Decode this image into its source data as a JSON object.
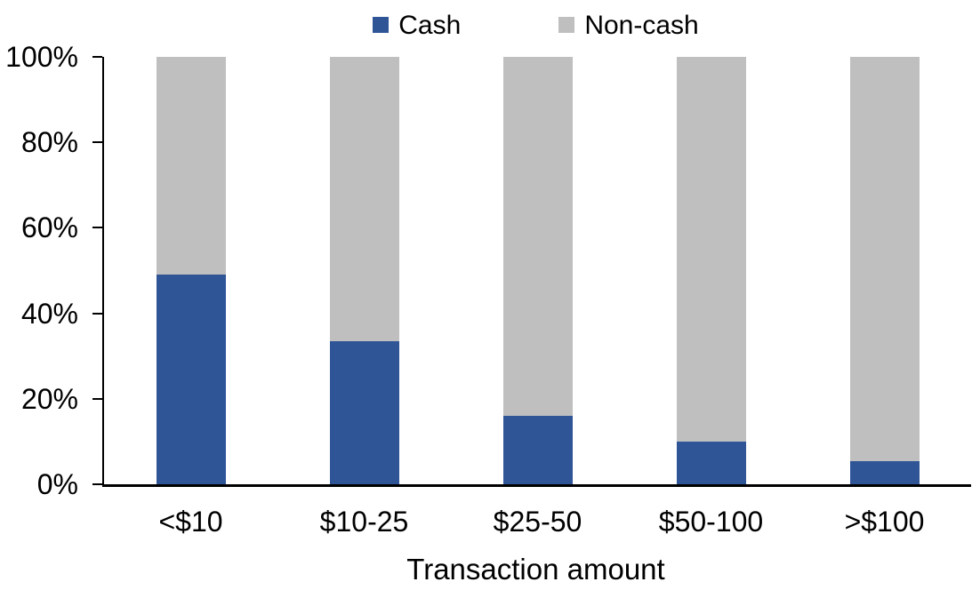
{
  "chart_data": {
    "type": "bar",
    "subtype": "stacked-100-percent",
    "title": "",
    "categories": [
      "<$10",
      "$10-25",
      "$25-50",
      "$50-100",
      ">$100"
    ],
    "series": [
      {
        "name": "Cash",
        "color": "#2F5597",
        "values": [
          49,
          33.5,
          16,
          10,
          5.5
        ]
      },
      {
        "name": "Non-cash",
        "color": "#BFBFBF",
        "values": [
          51,
          66.5,
          84,
          90,
          94.5
        ]
      }
    ],
    "xlabel": "Transaction amount",
    "ylabel": "",
    "ylim": [
      0,
      100
    ],
    "yticks": [
      "0%",
      "20%",
      "40%",
      "60%",
      "80%",
      "100%"
    ],
    "legend_position": "top-center",
    "grid": false,
    "axis_color": "#000000",
    "background": "#FFFFFF"
  }
}
